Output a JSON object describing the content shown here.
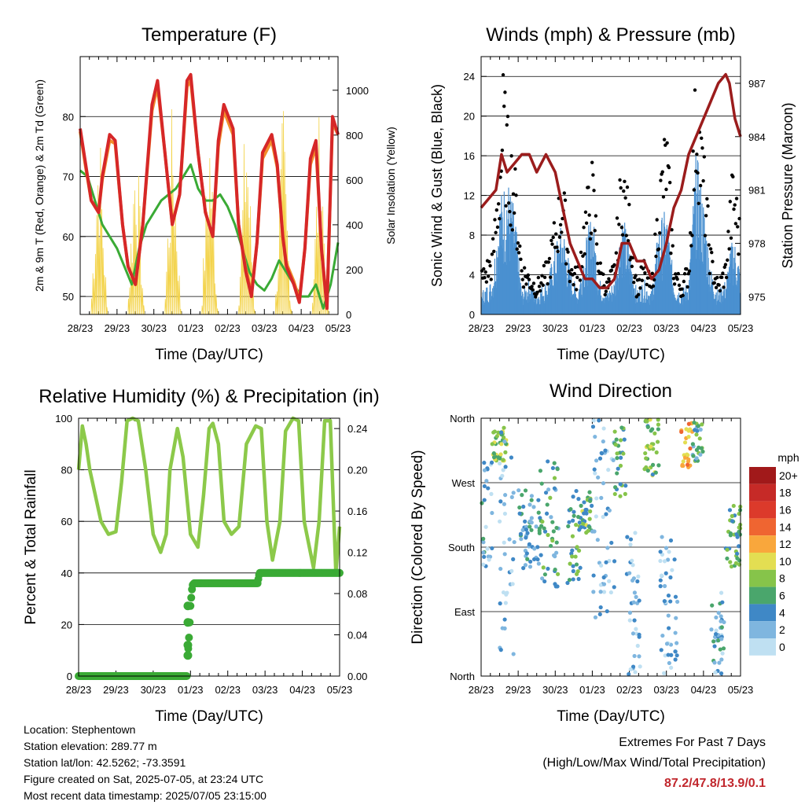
{
  "colors": {
    "temp_2m": "#d62728",
    "temp_9m": "#f28e2b",
    "dewpoint": "#3aaa35",
    "insolation": "#f3d34a",
    "wind_sonic": "#4a90d0",
    "gust": "#000000",
    "pressure": "#9b1c1c",
    "rh": "#8cc94a",
    "rain": "#3aaa35",
    "extremes": "#c1272d"
  },
  "chart_data": [
    {
      "id": "temperature",
      "type": "line",
      "title": "Temperature (F)",
      "xlabel": "Time (Day/UTC)",
      "ylabel": "2m & 9m T (Red, Orange) & 2m Td (Green)",
      "y2label": "Solar Insolation (Yellow)",
      "x_ticks": [
        "28/23",
        "29/23",
        "30/23",
        "01/23",
        "02/23",
        "03/23",
        "04/23",
        "05/23"
      ],
      "xlim": [
        0,
        7
      ],
      "ylim": [
        47,
        90
      ],
      "y_ticks": [
        50,
        60,
        70,
        80
      ],
      "y2lim": [
        0,
        1150
      ],
      "y2_ticks": [
        0,
        200,
        400,
        600,
        800,
        1000
      ],
      "grid": true,
      "series": [
        {
          "name": "2m T",
          "x": [
            0,
            0.15,
            0.3,
            0.5,
            0.6,
            0.8,
            0.95,
            1.15,
            1.3,
            1.5,
            1.7,
            1.95,
            2.1,
            2.3,
            2.5,
            2.7,
            2.9,
            3.0,
            3.2,
            3.4,
            3.6,
            3.75,
            3.9,
            4.15,
            4.3,
            4.5,
            4.65,
            4.8,
            4.95,
            5.2,
            5.35,
            5.5,
            5.6,
            5.8,
            5.95,
            6.1,
            6.25,
            6.4,
            6.55,
            6.7,
            6.85,
            7.0
          ],
          "y": [
            78,
            72,
            66,
            64,
            70,
            77,
            76,
            62,
            55,
            52,
            62,
            82,
            86,
            74,
            62,
            67,
            86,
            87,
            74,
            64,
            60,
            76,
            82,
            78,
            62,
            54,
            50,
            59,
            74,
            77,
            72,
            60,
            55,
            52,
            49,
            58,
            73,
            76,
            58,
            48,
            80,
            77
          ]
        },
        {
          "name": "9m T",
          "x": [
            0,
            0.15,
            0.3,
            0.5,
            0.6,
            0.8,
            0.95,
            1.15,
            1.3,
            1.5,
            1.7,
            1.95,
            2.1,
            2.3,
            2.5,
            2.7,
            2.9,
            3.0,
            3.2,
            3.4,
            3.6,
            3.75,
            3.9,
            4.15,
            4.3,
            4.5,
            4.65,
            4.8,
            4.95,
            5.2,
            5.35,
            5.5,
            5.6,
            5.8,
            5.95,
            6.1,
            6.25,
            6.4,
            6.55,
            6.7,
            6.85,
            7.0
          ],
          "y": [
            77.5,
            71.5,
            66,
            64,
            69.5,
            76,
            75.5,
            62,
            55,
            52,
            62,
            81,
            85,
            74,
            62,
            67,
            85,
            86,
            74,
            64,
            60,
            75,
            81,
            77,
            62,
            54.5,
            50.5,
            59,
            73,
            76,
            71.5,
            60,
            55.5,
            52.5,
            49.5,
            58,
            72,
            75,
            58,
            48.5,
            79,
            77
          ]
        },
        {
          "name": "2m Td",
          "x": [
            0,
            0.2,
            0.4,
            0.6,
            0.8,
            1.0,
            1.2,
            1.4,
            1.6,
            1.8,
            2.0,
            2.2,
            2.4,
            2.6,
            2.8,
            3.0,
            3.2,
            3.4,
            3.6,
            3.8,
            4.0,
            4.2,
            4.4,
            4.6,
            4.8,
            5.0,
            5.2,
            5.4,
            5.6,
            5.8,
            6.0,
            6.2,
            6.4,
            6.6,
            6.8,
            7.0
          ],
          "y": [
            71,
            70,
            66,
            62,
            60,
            58,
            55,
            52,
            58,
            62,
            64,
            66,
            67,
            68,
            70,
            72,
            68,
            66,
            66,
            67,
            65,
            62,
            58,
            54,
            52,
            51,
            53,
            56,
            54,
            52,
            50,
            50,
            52,
            48,
            52,
            59
          ]
        },
        {
          "name": "Solar Insolation",
          "axis": "y2",
          "x": [
            0,
            0.3,
            0.5,
            0.75,
            1.0,
            1.3,
            1.5,
            1.75,
            2.0,
            2.3,
            2.5,
            2.75,
            3.0,
            3.3,
            3.5,
            3.75,
            4.0,
            4.3,
            4.5,
            4.75,
            5.0,
            5.3,
            5.5,
            5.75,
            6.0,
            6.3,
            6.5,
            6.75,
            7.0
          ],
          "y": [
            0,
            0,
            1000,
            0,
            0,
            0,
            980,
            0,
            0,
            0,
            1050,
            0,
            0,
            0,
            1000,
            0,
            0,
            0,
            1080,
            0,
            0,
            0,
            990,
            0,
            0,
            0,
            1030,
            0,
            0
          ]
        }
      ]
    },
    {
      "id": "winds",
      "type": "line",
      "title": "Winds (mph) & Pressure (mb)",
      "xlabel": "Time (Day/UTC)",
      "ylabel": "Sonic Wind & Gust (Blue, Black)",
      "y2label": "Station Pressure (Maroon)",
      "x_ticks": [
        "28/23",
        "29/23",
        "30/23",
        "01/23",
        "02/23",
        "03/23",
        "04/23",
        "05/23"
      ],
      "xlim": [
        0,
        7
      ],
      "ylim": [
        0,
        26
      ],
      "y_ticks": [
        0,
        4,
        8,
        12,
        16,
        20,
        24
      ],
      "y2lim": [
        974,
        988.5
      ],
      "y2_ticks": [
        975,
        978,
        981,
        984,
        987
      ],
      "grid": true,
      "series": [
        {
          "name": "Sonic Wind",
          "x": [
            0,
            0.3,
            0.5,
            0.7,
            0.9,
            1.1,
            1.3,
            1.5,
            1.8,
            2.0,
            2.2,
            2.4,
            2.6,
            2.8,
            3.0,
            3.2,
            3.4,
            3.6,
            3.8,
            4.0,
            4.2,
            4.4,
            4.6,
            4.8,
            5.0,
            5.2,
            5.4,
            5.6,
            5.8,
            6.0,
            6.2,
            6.4,
            6.6,
            6.8,
            7.0
          ],
          "y": [
            2,
            3,
            10,
            12,
            9,
            2,
            3,
            2,
            3,
            6,
            8,
            4,
            2,
            6,
            9,
            3,
            2,
            3,
            9,
            6,
            2,
            3,
            2,
            8,
            9,
            3,
            2,
            3,
            14,
            10,
            4,
            2,
            3,
            7,
            4
          ]
        },
        {
          "name": "Gust",
          "x": [
            0,
            0.3,
            0.5,
            0.6,
            0.7,
            0.9,
            1.1,
            1.3,
            1.5,
            1.8,
            2.0,
            2.2,
            2.4,
            2.6,
            2.8,
            3.0,
            3.2,
            3.4,
            3.6,
            3.8,
            4.0,
            4.2,
            4.4,
            4.6,
            4.8,
            5.0,
            5.2,
            5.4,
            5.6,
            5.8,
            6.0,
            6.2,
            6.4,
            6.6,
            6.8,
            7.0
          ],
          "y": [
            4,
            6,
            15,
            22,
            18,
            14,
            5,
            4,
            3,
            5,
            9,
            13,
            5,
            4,
            10,
            14,
            5,
            3,
            5,
            15,
            10,
            3,
            5,
            3,
            12,
            18,
            5,
            3,
            5,
            23,
            15,
            6,
            3,
            5,
            14,
            8
          ]
        },
        {
          "name": "Station Pressure",
          "axis": "y2",
          "x": [
            0,
            0.2,
            0.4,
            0.55,
            0.7,
            0.9,
            1.1,
            1.3,
            1.5,
            1.75,
            2.0,
            2.2,
            2.4,
            2.6,
            2.8,
            3.0,
            3.2,
            3.4,
            3.6,
            3.8,
            4.0,
            4.2,
            4.4,
            4.6,
            4.8,
            5.0,
            5.2,
            5.4,
            5.6,
            5.8,
            6.0,
            6.2,
            6.4,
            6.6,
            6.7,
            6.85,
            7.0
          ],
          "y": [
            980,
            980.5,
            981,
            983,
            982,
            982.5,
            983,
            983,
            982,
            983,
            982,
            980,
            978,
            977,
            976,
            976,
            975.5,
            975.5,
            976,
            978,
            978,
            977,
            977,
            976,
            976.5,
            978,
            980,
            981,
            983,
            984,
            985,
            986,
            987,
            987.5,
            987,
            985,
            984
          ]
        }
      ]
    },
    {
      "id": "humidity",
      "type": "line",
      "title": "Relative Humidity (%) & Precipitation (in)",
      "xlabel": "Time (Day/UTC)",
      "ylabel": "Percent & Total Rainfall",
      "x_ticks": [
        "28/23",
        "29/23",
        "30/23",
        "01/23",
        "02/23",
        "03/23",
        "04/23",
        "05/23"
      ],
      "xlim": [
        0,
        7
      ],
      "ylim": [
        0,
        100
      ],
      "y_ticks": [
        0,
        20,
        40,
        60,
        80,
        100
      ],
      "y2lim": [
        0,
        0.25
      ],
      "y2_ticks": [
        "0.00",
        "0.04",
        "0.08",
        "0.12",
        "0.16",
        "0.20",
        "0.24"
      ],
      "grid": true,
      "series": [
        {
          "name": "Relative Humidity",
          "x": [
            0,
            0.1,
            0.2,
            0.3,
            0.45,
            0.6,
            0.8,
            1.0,
            1.15,
            1.3,
            1.45,
            1.6,
            1.8,
            2.0,
            2.2,
            2.35,
            2.45,
            2.65,
            2.8,
            3.0,
            3.2,
            3.35,
            3.5,
            3.6,
            3.75,
            3.9,
            4.1,
            4.3,
            4.5,
            4.75,
            4.9,
            5.05,
            5.2,
            5.4,
            5.55,
            5.75,
            5.9,
            6.05,
            6.3,
            6.45,
            6.6,
            6.75,
            6.9,
            7.0
          ],
          "y": [
            80,
            97,
            90,
            80,
            70,
            60,
            55,
            56,
            75,
            99,
            100,
            99,
            80,
            55,
            48,
            55,
            80,
            96,
            85,
            55,
            50,
            70,
            96,
            98,
            90,
            60,
            55,
            58,
            90,
            97,
            96,
            60,
            45,
            60,
            95,
            100,
            99,
            60,
            42,
            60,
            99,
            99,
            40,
            58
          ]
        },
        {
          "name": "Total Rainfall",
          "axis": "y2",
          "x": [
            0,
            2.9,
            2.92,
            2.95,
            2.98,
            3.0,
            3.05,
            3.1,
            3.2,
            4.8,
            4.85,
            5.0,
            7.0
          ],
          "y": [
            0,
            0,
            0.02,
            0.03,
            0.052,
            0.068,
            0.088,
            0.09,
            0.09,
            0.09,
            0.1,
            0.1,
            0.1
          ]
        }
      ]
    },
    {
      "id": "wind_direction",
      "type": "scatter",
      "title": "Wind Direction",
      "xlabel": "Time (Day/UTC)",
      "ylabel": "Direction (Colored By Speed)",
      "x_ticks": [
        "28/23",
        "29/23",
        "30/23",
        "01/23",
        "02/23",
        "03/23",
        "04/23",
        "05/23"
      ],
      "y_ticks": [
        "North",
        "East",
        "South",
        "West",
        "North"
      ],
      "ylim": [
        0,
        360
      ],
      "xlim": [
        0,
        7
      ],
      "grid": true,
      "colorbar": {
        "title": "mph",
        "labels": [
          "20+",
          "18",
          "16",
          "14",
          "12",
          "10",
          "8",
          "6",
          "4",
          "2",
          "0"
        ],
        "colors": [
          "#a1191a",
          "#c62a27",
          "#dc3a2b",
          "#ef6531",
          "#f9a73c",
          "#e3de52",
          "#86c44a",
          "#4aa66c",
          "#3f88c6",
          "#7fb6df",
          "#bfe0f2"
        ]
      },
      "clusters": [
        {
          "x": [
            0.3,
            0.7
          ],
          "dir": [
            300,
            350
          ],
          "speed": 8
        },
        {
          "x": [
            0.0,
            0.3
          ],
          "dir": [
            150,
            300
          ],
          "speed": 3
        },
        {
          "x": [
            0.5,
            0.9
          ],
          "dir": [
            30,
            350
          ],
          "speed": 2
        },
        {
          "x": [
            1.0,
            1.6
          ],
          "dir": [
            150,
            260
          ],
          "speed": 4
        },
        {
          "x": [
            1.6,
            2.1
          ],
          "dir": [
            120,
            300
          ],
          "speed": 5
        },
        {
          "x": [
            2.3,
            2.7
          ],
          "dir": [
            130,
            260
          ],
          "speed": 6
        },
        {
          "x": [
            2.7,
            3.0
          ],
          "dir": [
            200,
            260
          ],
          "speed": 7
        },
        {
          "x": [
            3.0,
            3.6
          ],
          "dir": [
            80,
            360
          ],
          "speed": 2
        },
        {
          "x": [
            3.6,
            3.9
          ],
          "dir": [
            250,
            350
          ],
          "speed": 6
        },
        {
          "x": [
            3.9,
            4.3
          ],
          "dir": [
            0,
            200
          ],
          "speed": 2
        },
        {
          "x": [
            4.4,
            4.8
          ],
          "dir": [
            280,
            360
          ],
          "speed": 7
        },
        {
          "x": [
            4.8,
            5.3
          ],
          "dir": [
            0,
            200
          ],
          "speed": 2
        },
        {
          "x": [
            5.4,
            5.7
          ],
          "dir": [
            290,
            355
          ],
          "speed": 12
        },
        {
          "x": [
            5.7,
            6.0
          ],
          "dir": [
            300,
            360
          ],
          "speed": 5
        },
        {
          "x": [
            6.2,
            6.6
          ],
          "dir": [
            0,
            120
          ],
          "speed": 3
        },
        {
          "x": [
            6.6,
            7.0
          ],
          "dir": [
            150,
            240
          ],
          "speed": 6
        }
      ]
    }
  ],
  "footer": {
    "location": "Location: Stephentown",
    "elevation": "Station elevation: 289.77 m",
    "latlon": "Station lat/lon: 42.5262; -73.3591",
    "created": "Figure created on Sat, 2025-07-05, at 23:24 UTC",
    "recent": "Most recent data timestamp: 2025/07/05 23:15:00"
  },
  "extremes": {
    "heading": "Extremes For Past 7 Days",
    "subheading": "(High/Low/Max Wind/Total Precipitation)",
    "value": "87.2/47.8/13.9/0.1"
  }
}
